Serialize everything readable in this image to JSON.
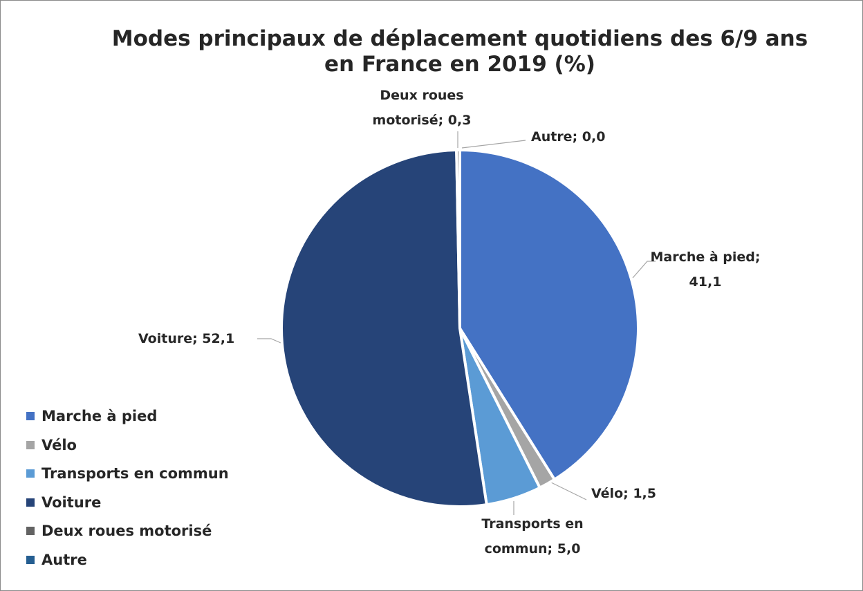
{
  "chart_data": {
    "type": "pie",
    "title": "Modes principaux de déplacement quotidiens des 6/9 ans en France en 2019 (%)",
    "categories": [
      "Marche à pied",
      "Vélo",
      "Transports en commun",
      "Voiture",
      "Deux roues motorisé",
      "Autre"
    ],
    "values": [
      41.1,
      1.5,
      5.0,
      52.1,
      0.3,
      0.0
    ],
    "value_labels": [
      "Marche à pied; 41,1",
      "Vélo; 1,5",
      "Transports en commun; 5,0",
      "Voiture; 52,1",
      "Deux roues motorisé; 0,3",
      "Autre; 0,0"
    ],
    "colors": [
      "#4472c4",
      "#a5a5a5",
      "#5b9bd5",
      "#264478",
      "#636363",
      "#255e91"
    ],
    "legend": "left"
  }
}
